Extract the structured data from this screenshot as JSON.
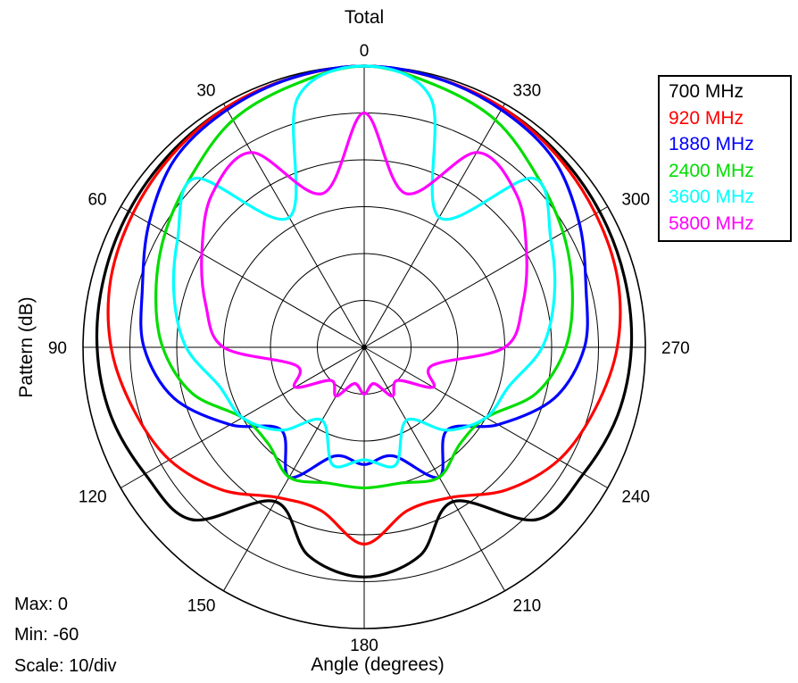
{
  "chart_data": {
    "type": "polar",
    "title": "Total",
    "xlabel": "Angle (degrees)",
    "ylabel": "Pattern (dB)",
    "rlim": [
      -60,
      0
    ],
    "scale_step": 10,
    "angle_direction": "counterclockwise, 0 at top",
    "angle_ticks": [
      "0",
      "30",
      "60",
      "90",
      "120",
      "150",
      "180",
      "210",
      "240",
      "270",
      "300",
      "330"
    ],
    "grid": true,
    "legend_position": "top-right",
    "angles_deg": [
      0,
      15,
      30,
      45,
      60,
      75,
      90,
      105,
      120,
      135,
      150,
      165,
      180
    ],
    "series": [
      {
        "name": "700 MHz",
        "color": "#000000",
        "values": [
          0,
          -0.5,
          -1,
          -1.5,
          -2,
          -2.5,
          -3,
          -4,
          -6,
          -8,
          -22,
          -14,
          -11
        ]
      },
      {
        "name": "920 MHz",
        "color": "#ff0000",
        "values": [
          0,
          -0.5,
          -1,
          -2,
          -3,
          -4,
          -6,
          -9,
          -12,
          -17,
          -23,
          -24,
          -18
        ]
      },
      {
        "name": "1880 MHz",
        "color": "#0000ff",
        "values": [
          0,
          -0.5,
          -1.5,
          -3,
          -7,
          -11,
          -13,
          -18,
          -27,
          -35,
          -28,
          -36,
          -35
        ]
      },
      {
        "name": "2400 MHz",
        "color": "#00dd00",
        "values": [
          0,
          -2,
          -4,
          -8,
          -11,
          -14,
          -17,
          -22,
          -30,
          -31,
          -28,
          -30,
          -30
        ]
      },
      {
        "name": "3600 MHz",
        "color": "#00ffff",
        "values": [
          0,
          -5,
          -28,
          -9,
          -14,
          -18,
          -22,
          -28,
          -30,
          -35,
          -42,
          -34,
          -36
        ]
      },
      {
        "name": "5800 MHz",
        "color": "#ff00ff",
        "values": [
          -10,
          -26,
          -12,
          -14,
          -20,
          -25,
          -30,
          -45,
          -43,
          -50,
          -48,
          -52,
          -50
        ]
      }
    ]
  },
  "footer": {
    "max": "Max: 0",
    "min": "Min: -60",
    "scale": "Scale: 10/div"
  }
}
